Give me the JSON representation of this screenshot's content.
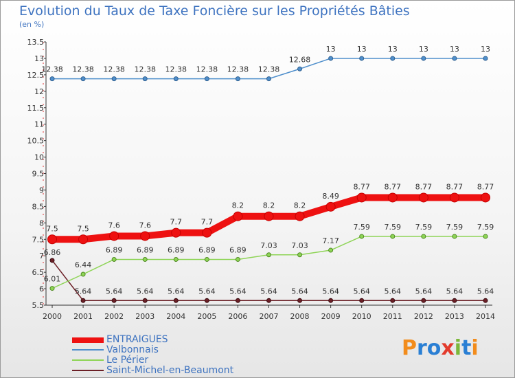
{
  "logo": {
    "text": "Proxiti",
    "letter_colors": [
      "#f28c1c",
      "#2a7fd4",
      "#2a7fd4",
      "#e33b2c",
      "#7cb83a",
      "#2a7fd4",
      "#f28c1c"
    ]
  },
  "chart_data": {
    "type": "line",
    "title": "Evolution du Taux de Taxe Foncière sur les Propriétés Bâties",
    "subtitle": "(en %)",
    "xlabel": "",
    "ylabel": "",
    "x": [
      "2000",
      "2001",
      "2002",
      "2003",
      "2004",
      "2005",
      "2006",
      "2007",
      "2008",
      "2009",
      "2010",
      "2011",
      "2012",
      "2013",
      "2014"
    ],
    "ylim": [
      5.5,
      13.5
    ],
    "yticks": [
      "5.5",
      "6",
      "6.5",
      "7",
      "7.5",
      "8",
      "8.5",
      "9",
      "9.5",
      "10",
      "10.5",
      "11",
      "11.5",
      "12",
      "12.5",
      "13",
      "13.5"
    ],
    "grid": false,
    "legend_position": "bottom-left",
    "series": [
      {
        "name": "ENTRAIGUES",
        "color": "#ee1111",
        "values": [
          7.5,
          7.5,
          7.6,
          7.6,
          7.7,
          7.7,
          8.2,
          8.2,
          8.2,
          8.49,
          8.77,
          8.77,
          8.77,
          8.77,
          8.77
        ],
        "labels": [
          "7.5",
          "7.5",
          "7.6",
          "7.6",
          "7.7",
          "7.7",
          "8.2",
          "8.2",
          "8.2",
          "8.49",
          "8.77",
          "8.77",
          "8.77",
          "8.77",
          "8.77"
        ]
      },
      {
        "name": "Valbonnais",
        "color": "#4f8fcc",
        "values": [
          12.38,
          12.38,
          12.38,
          12.38,
          12.38,
          12.38,
          12.38,
          12.38,
          12.68,
          13,
          13,
          13,
          13,
          13,
          13
        ],
        "labels": [
          "12.38",
          "12.38",
          "12.38",
          "12.38",
          "12.38",
          "12.38",
          "12.38",
          "12.38",
          "12.68",
          "13",
          "13",
          "13",
          "13",
          "13",
          "13"
        ]
      },
      {
        "name": "Le Périer",
        "color": "#8ed456",
        "values": [
          6.01,
          6.44,
          6.89,
          6.89,
          6.89,
          6.89,
          6.89,
          7.03,
          7.03,
          7.17,
          7.59,
          7.59,
          7.59,
          7.59,
          7.59
        ],
        "labels": [
          "6.01",
          "6.44",
          "6.89",
          "6.89",
          "6.89",
          "6.89",
          "6.89",
          "7.03",
          "7.03",
          "7.17",
          "7.59",
          "7.59",
          "7.59",
          "7.59",
          "7.59"
        ]
      },
      {
        "name": "Saint-Michel-en-Beaumont",
        "color": "#6b1f26",
        "values": [
          6.86,
          5.64,
          5.64,
          5.64,
          5.64,
          5.64,
          5.64,
          5.64,
          5.64,
          5.64,
          5.64,
          5.64,
          5.64,
          5.64,
          5.64
        ],
        "labels": [
          "6.86",
          "5.64",
          "5.64",
          "5.64",
          "5.64",
          "5.64",
          "5.64",
          "5.64",
          "5.64",
          "5.64",
          "5.64",
          "5.64",
          "5.64",
          "5.64",
          "5.64"
        ]
      }
    ]
  }
}
